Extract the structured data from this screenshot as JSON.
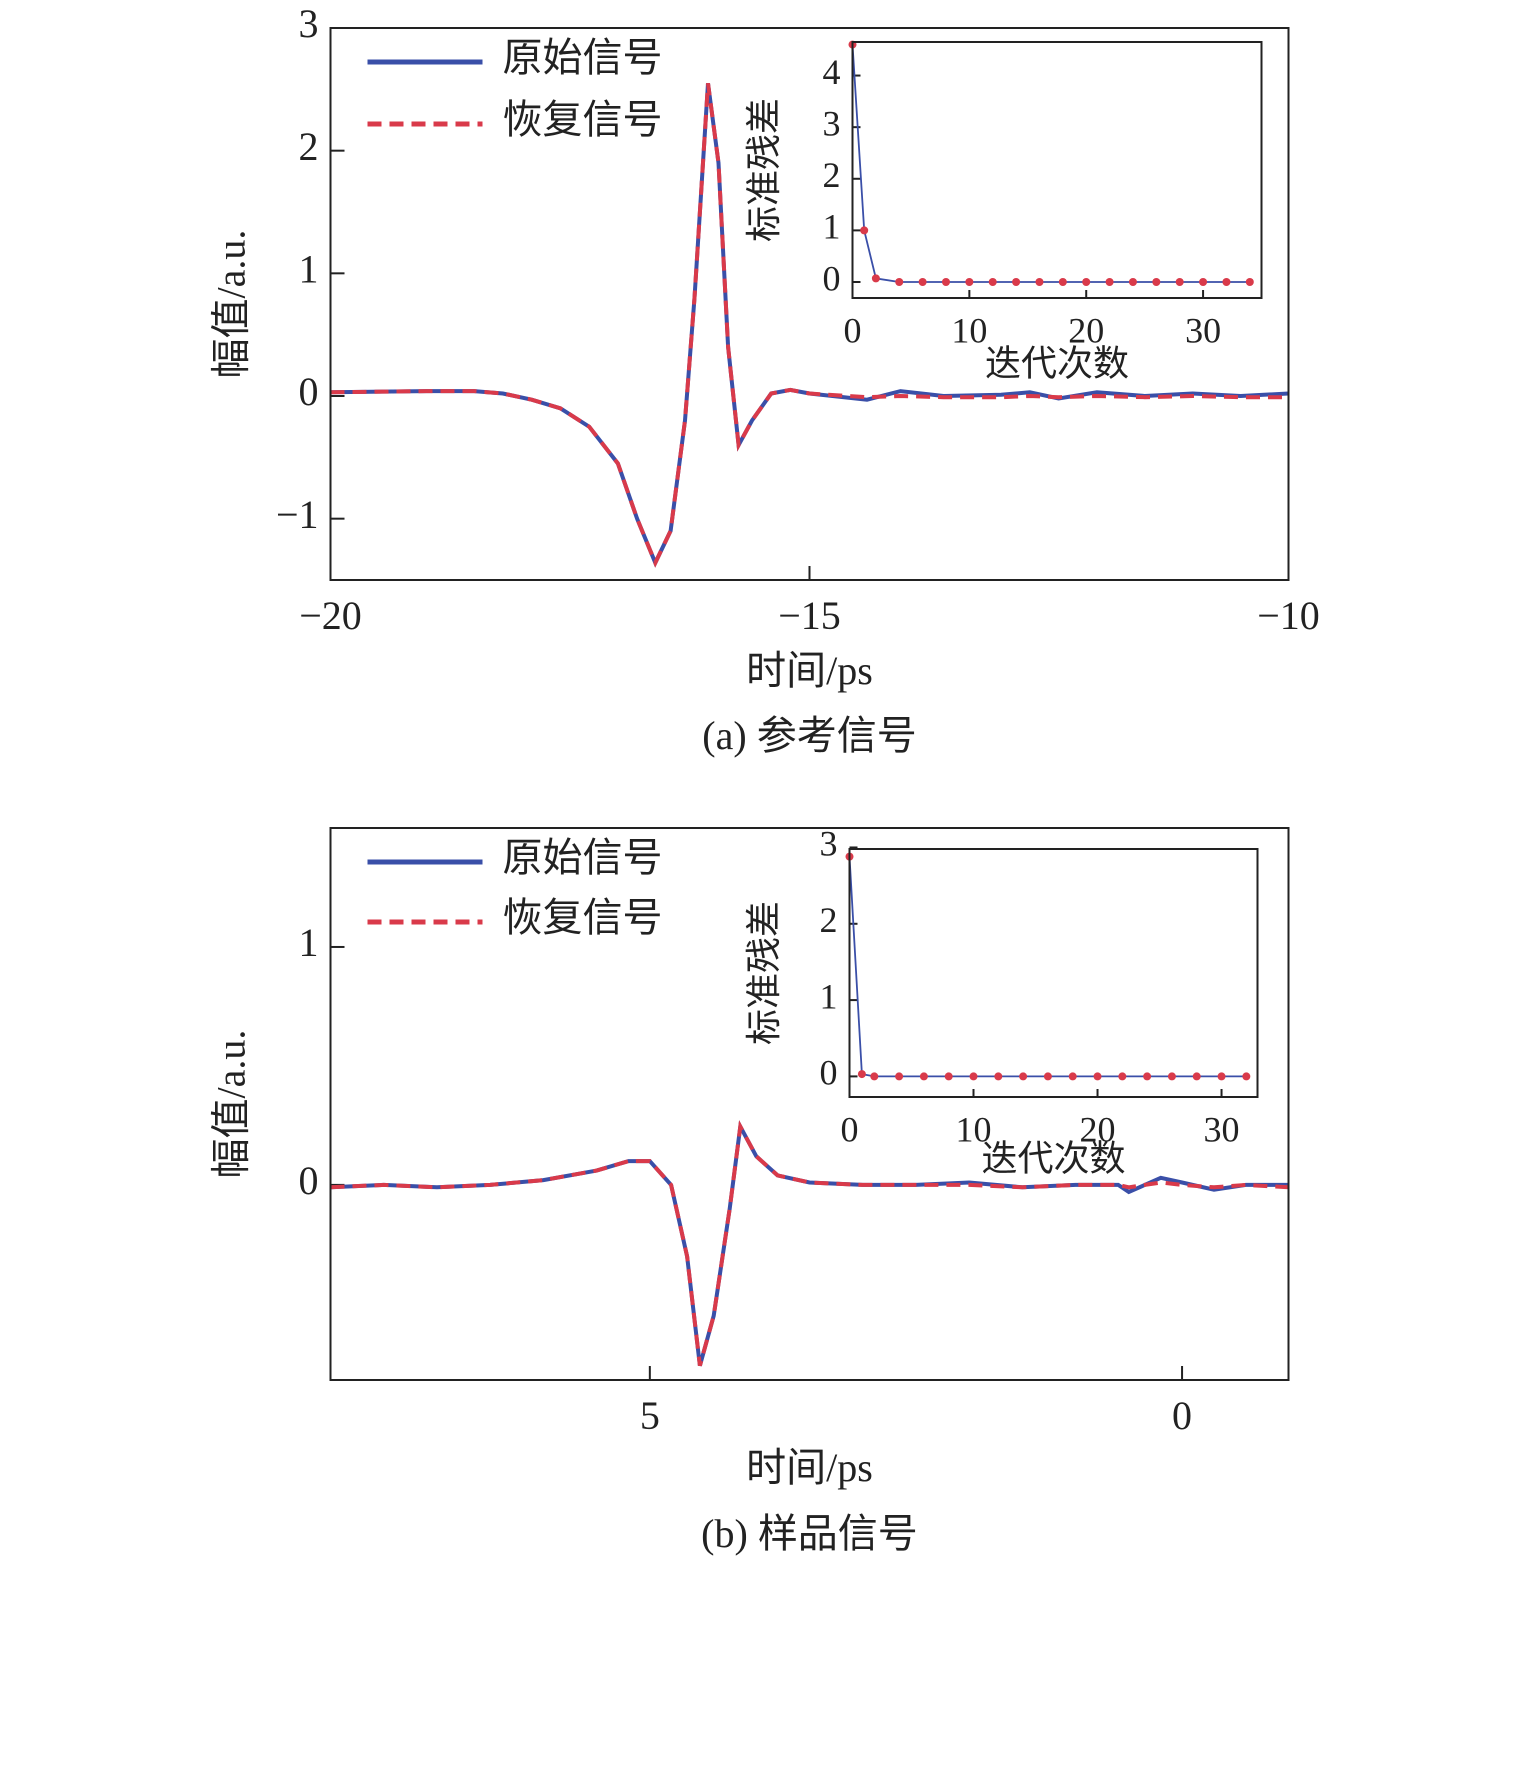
{
  "chart_data": [
    {
      "type": "line",
      "caption": "(a) 参考信号",
      "xlabel": "时间/ps",
      "ylabel": "幅值/a.u.",
      "xlim": [
        -20,
        -10
      ],
      "ylim": [
        -1.5,
        3
      ],
      "xticks": [
        {
          "value": -20,
          "label": "−20"
        },
        {
          "value": -15,
          "label": "−15"
        },
        {
          "value": -10,
          "label": "−10"
        }
      ],
      "yticks": [
        {
          "value": -1,
          "label": "−1"
        },
        0,
        1,
        2,
        3
      ],
      "x": [
        -20,
        -19,
        -18.5,
        -18.2,
        -17.9,
        -17.6,
        -17.3,
        -17.0,
        -16.8,
        -16.61,
        -16.45,
        -16.3,
        -16.2,
        -16.06,
        -15.95,
        -15.85,
        -15.74,
        -15.6,
        -15.4,
        -15.2,
        -15.0,
        -14.4,
        -14.05,
        -13.6,
        -13.0,
        -12.7,
        -12.4,
        -12.0,
        -11.5,
        -11.0,
        -10.5,
        -10.0
      ],
      "series": [
        {
          "name": "原始信号",
          "color": "#3a4fa8",
          "style": "solid",
          "values": [
            0.03,
            0.04,
            0.04,
            0.02,
            -0.03,
            -0.1,
            -0.25,
            -0.55,
            -1.0,
            -1.36,
            -1.1,
            -0.2,
            0.8,
            2.55,
            1.9,
            0.4,
            -0.4,
            -0.2,
            0.02,
            0.05,
            0.02,
            -0.03,
            0.04,
            0.0,
            0.01,
            0.03,
            -0.02,
            0.03,
            0.0,
            0.02,
            0.0,
            0.02
          ]
        },
        {
          "name": "恢复信号",
          "color": "#d93a4a",
          "style": "dashed",
          "values": [
            0.03,
            0.04,
            0.04,
            0.02,
            -0.03,
            -0.1,
            -0.25,
            -0.55,
            -1.0,
            -1.36,
            -1.1,
            -0.2,
            0.8,
            2.55,
            1.9,
            0.4,
            -0.4,
            -0.2,
            0.02,
            0.05,
            0.02,
            -0.01,
            0.0,
            -0.01,
            -0.01,
            0.0,
            -0.01,
            0.0,
            -0.01,
            0.0,
            -0.01,
            -0.01
          ]
        }
      ]
    },
    {
      "type": "line",
      "xlabel": "迭代次数",
      "ylabel": "标准残差",
      "xlim": [
        0,
        35
      ],
      "ylim": [
        -0.31,
        4.65
      ],
      "xticks": [
        0,
        10,
        20,
        30
      ],
      "yticks": [
        0,
        1,
        2,
        3,
        4
      ],
      "x": [
        0,
        1,
        2,
        4,
        6,
        8,
        10,
        12,
        14,
        16,
        18,
        20,
        22,
        24,
        26,
        28,
        30,
        32,
        34
      ],
      "series": [
        {
          "color": "#3a4fa8",
          "marker_color": "#d93a4a",
          "style": "solid",
          "values": [
            4.6,
            1.0,
            0.07,
            0,
            0,
            0,
            0,
            0,
            0,
            0,
            0,
            0,
            0,
            0,
            0,
            0,
            0,
            0,
            0
          ]
        }
      ]
    },
    {
      "type": "line",
      "caption": "(b) 样品信号",
      "xlabel": "时间/ps",
      "ylabel": "幅值/a.u.",
      "xlim": [
        8,
        -1
      ],
      "ylim": [
        -0.82,
        1.5
      ],
      "xticks": [
        5,
        0
      ],
      "yticks": [
        0,
        1
      ],
      "x": [
        8.0,
        7.5,
        7.0,
        6.5,
        6.0,
        5.5,
        5.2,
        5.0,
        4.8,
        4.65,
        4.53,
        4.4,
        4.25,
        4.15,
        4.0,
        3.8,
        3.5,
        3.0,
        2.5,
        2.0,
        1.5,
        1.0,
        0.6,
        0.5,
        0.2,
        0.0,
        -0.3,
        -0.6,
        -1.0
      ],
      "series": [
        {
          "name": "原始信号",
          "color": "#3a4fa8",
          "style": "solid",
          "values": [
            -0.01,
            0.0,
            -0.01,
            0.0,
            0.02,
            0.06,
            0.1,
            0.1,
            0.0,
            -0.3,
            -0.76,
            -0.55,
            -0.1,
            0.245,
            0.12,
            0.04,
            0.01,
            0.0,
            0.0,
            0.01,
            -0.01,
            0.0,
            0.0,
            -0.03,
            0.03,
            0.01,
            -0.02,
            0.0,
            0.0
          ]
        },
        {
          "name": "恢复信号",
          "color": "#d93a4a",
          "style": "dashed",
          "values": [
            -0.01,
            0.0,
            -0.01,
            0.0,
            0.02,
            0.06,
            0.1,
            0.1,
            0.0,
            -0.3,
            -0.76,
            -0.55,
            -0.1,
            0.245,
            0.12,
            0.04,
            0.01,
            0.0,
            0.0,
            0.0,
            -0.01,
            0.0,
            0.0,
            -0.01,
            0.01,
            0.0,
            -0.01,
            0.0,
            -0.01
          ]
        }
      ]
    },
    {
      "type": "line",
      "xlabel": "迭代次数",
      "ylabel": "标准残差",
      "xlim": [
        0,
        32.9
      ],
      "ylim": [
        -0.27,
        2.98
      ],
      "xticks": [
        0,
        10,
        20,
        30
      ],
      "yticks": [
        0,
        1,
        2,
        3
      ],
      "x": [
        0,
        1,
        2,
        4,
        6,
        8,
        10,
        12,
        14,
        16,
        18,
        20,
        22,
        24,
        26,
        28,
        30,
        32
      ],
      "series": [
        {
          "color": "#3a4fa8",
          "marker_color": "#d93a4a",
          "style": "solid",
          "values": [
            2.88,
            0.03,
            0,
            0,
            0,
            0,
            0,
            0,
            0,
            0,
            0,
            0,
            0,
            0,
            0,
            0,
            0,
            0
          ]
        }
      ]
    }
  ]
}
